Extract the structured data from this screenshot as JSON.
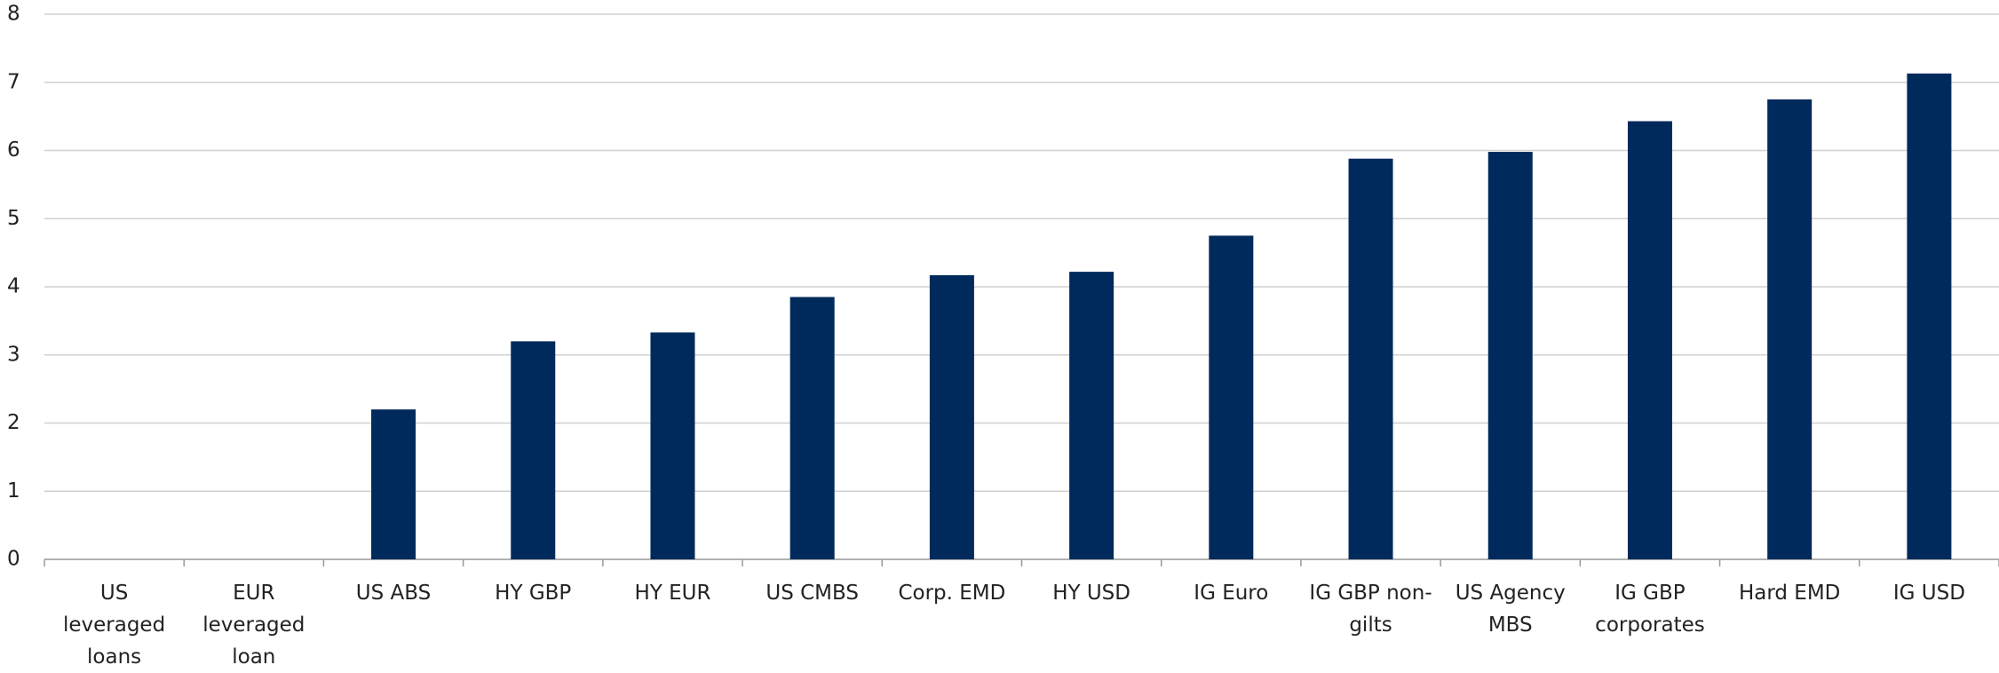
{
  "chart_data": {
    "type": "bar",
    "categories": [
      "US leveraged loans",
      "EUR leveraged loan",
      "US ABS",
      "HY GBP",
      "HY EUR",
      "US CMBS",
      "Corp. EMD",
      "HY USD",
      "IG Euro",
      "IG GBP non-gilts",
      "US Agency MBS",
      "IG GBP corporates",
      "Hard EMD",
      "IG USD"
    ],
    "values": [
      0,
      0,
      2.2,
      3.2,
      3.33,
      3.85,
      4.17,
      4.22,
      4.75,
      5.88,
      5.98,
      6.43,
      6.75,
      7.13
    ],
    "color": "#002a5c",
    "ylim": [
      0,
      8
    ],
    "yticks": [
      0,
      1,
      2,
      3,
      4,
      5,
      6,
      7,
      8
    ],
    "grid": true
  }
}
